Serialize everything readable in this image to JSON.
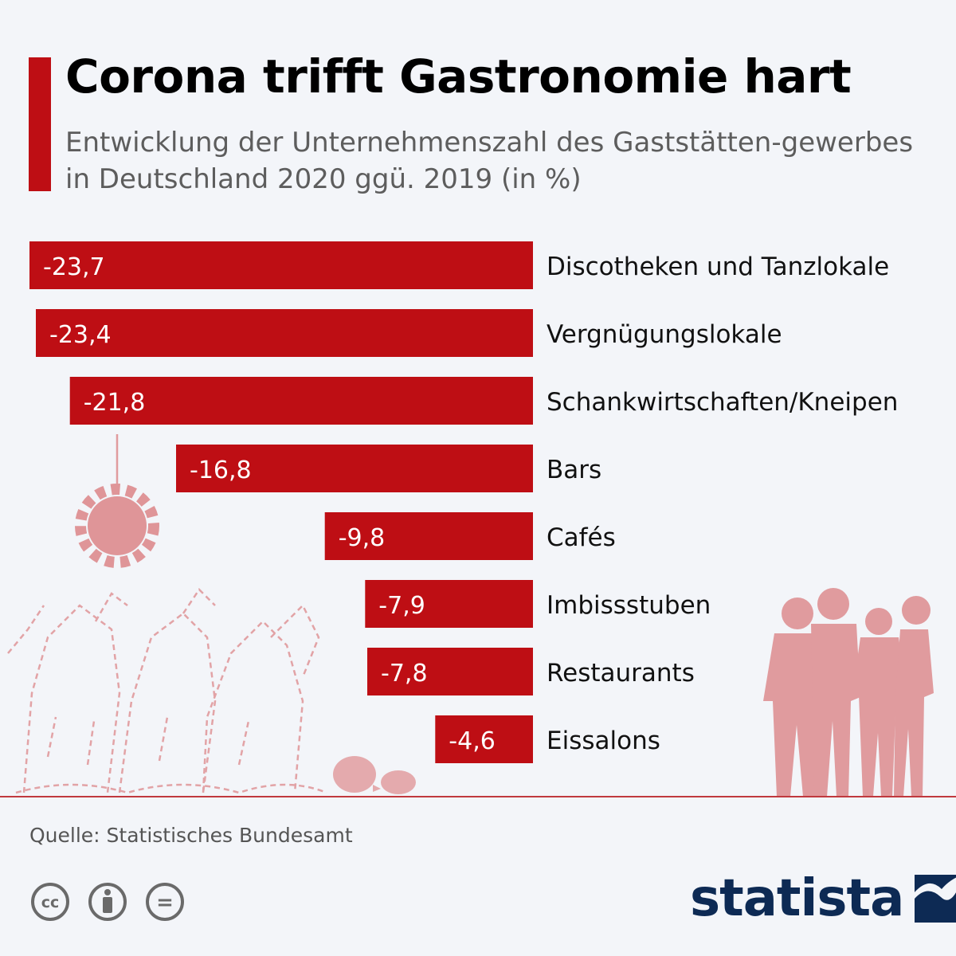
{
  "header": {
    "title": "Corona trifft Gastronomie hart",
    "subtitle": "Entwicklung der Unternehmenszahl des Gaststätten-gewerbes in Deutschland 2020 ggü. 2019 (in %)"
  },
  "chart_data": {
    "type": "bar",
    "orientation": "horizontal",
    "title": "Corona trifft Gastronomie hart",
    "subtitle": "Entwicklung der Unternehmenszahl des Gaststätten-gewerbes in Deutschland 2020 ggü. 2019 (in %)",
    "categories": [
      "Discotheken und Tanzlokale",
      "Vergnügungslokale",
      "Schankwirtschaften/Kneipen",
      "Bars",
      "Cafés",
      "Imbissstuben",
      "Restaurants",
      "Eissalons"
    ],
    "values": [
      -23.7,
      -23.4,
      -21.8,
      -16.8,
      -9.8,
      -7.9,
      -7.8,
      -4.6
    ],
    "value_labels": [
      "-23,7",
      "-23,4",
      "-21,8",
      "-16,8",
      "-9,8",
      "-7,9",
      "-7,8",
      "-4,6"
    ],
    "xlim": [
      -23.7,
      0
    ],
    "unit": "%",
    "bar_color": "#be0e14",
    "grid": false,
    "legend": "none"
  },
  "footer": {
    "source": "Quelle: Statistisches Bundesamt",
    "license_icons": [
      "cc-icon",
      "by-icon",
      "nd-icon"
    ],
    "license_glyphs": [
      "cc",
      "="
    ],
    "brand": "statista"
  },
  "colors": {
    "accent": "#be0e14",
    "background": "#f3f5f9",
    "illustration": "#e09b9e",
    "brand": "#0d2a54"
  }
}
